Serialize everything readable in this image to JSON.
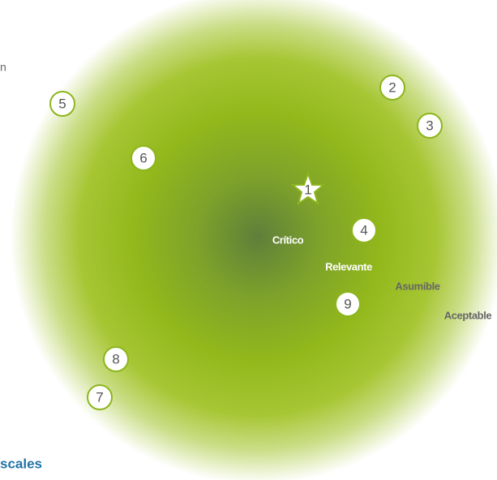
{
  "fragments": {
    "top": "n",
    "footer": "scales"
  },
  "zones": [
    {
      "label": "Crítico"
    },
    {
      "label": "Relevante"
    },
    {
      "label": "Asumible"
    },
    {
      "label": "Aceptable"
    }
  ],
  "markers": [
    {
      "label": "1"
    },
    {
      "label": "2"
    },
    {
      "label": "3"
    },
    {
      "label": "4"
    },
    {
      "label": "5"
    },
    {
      "label": "6"
    },
    {
      "label": "7"
    },
    {
      "label": "8"
    },
    {
      "label": "9"
    }
  ]
}
